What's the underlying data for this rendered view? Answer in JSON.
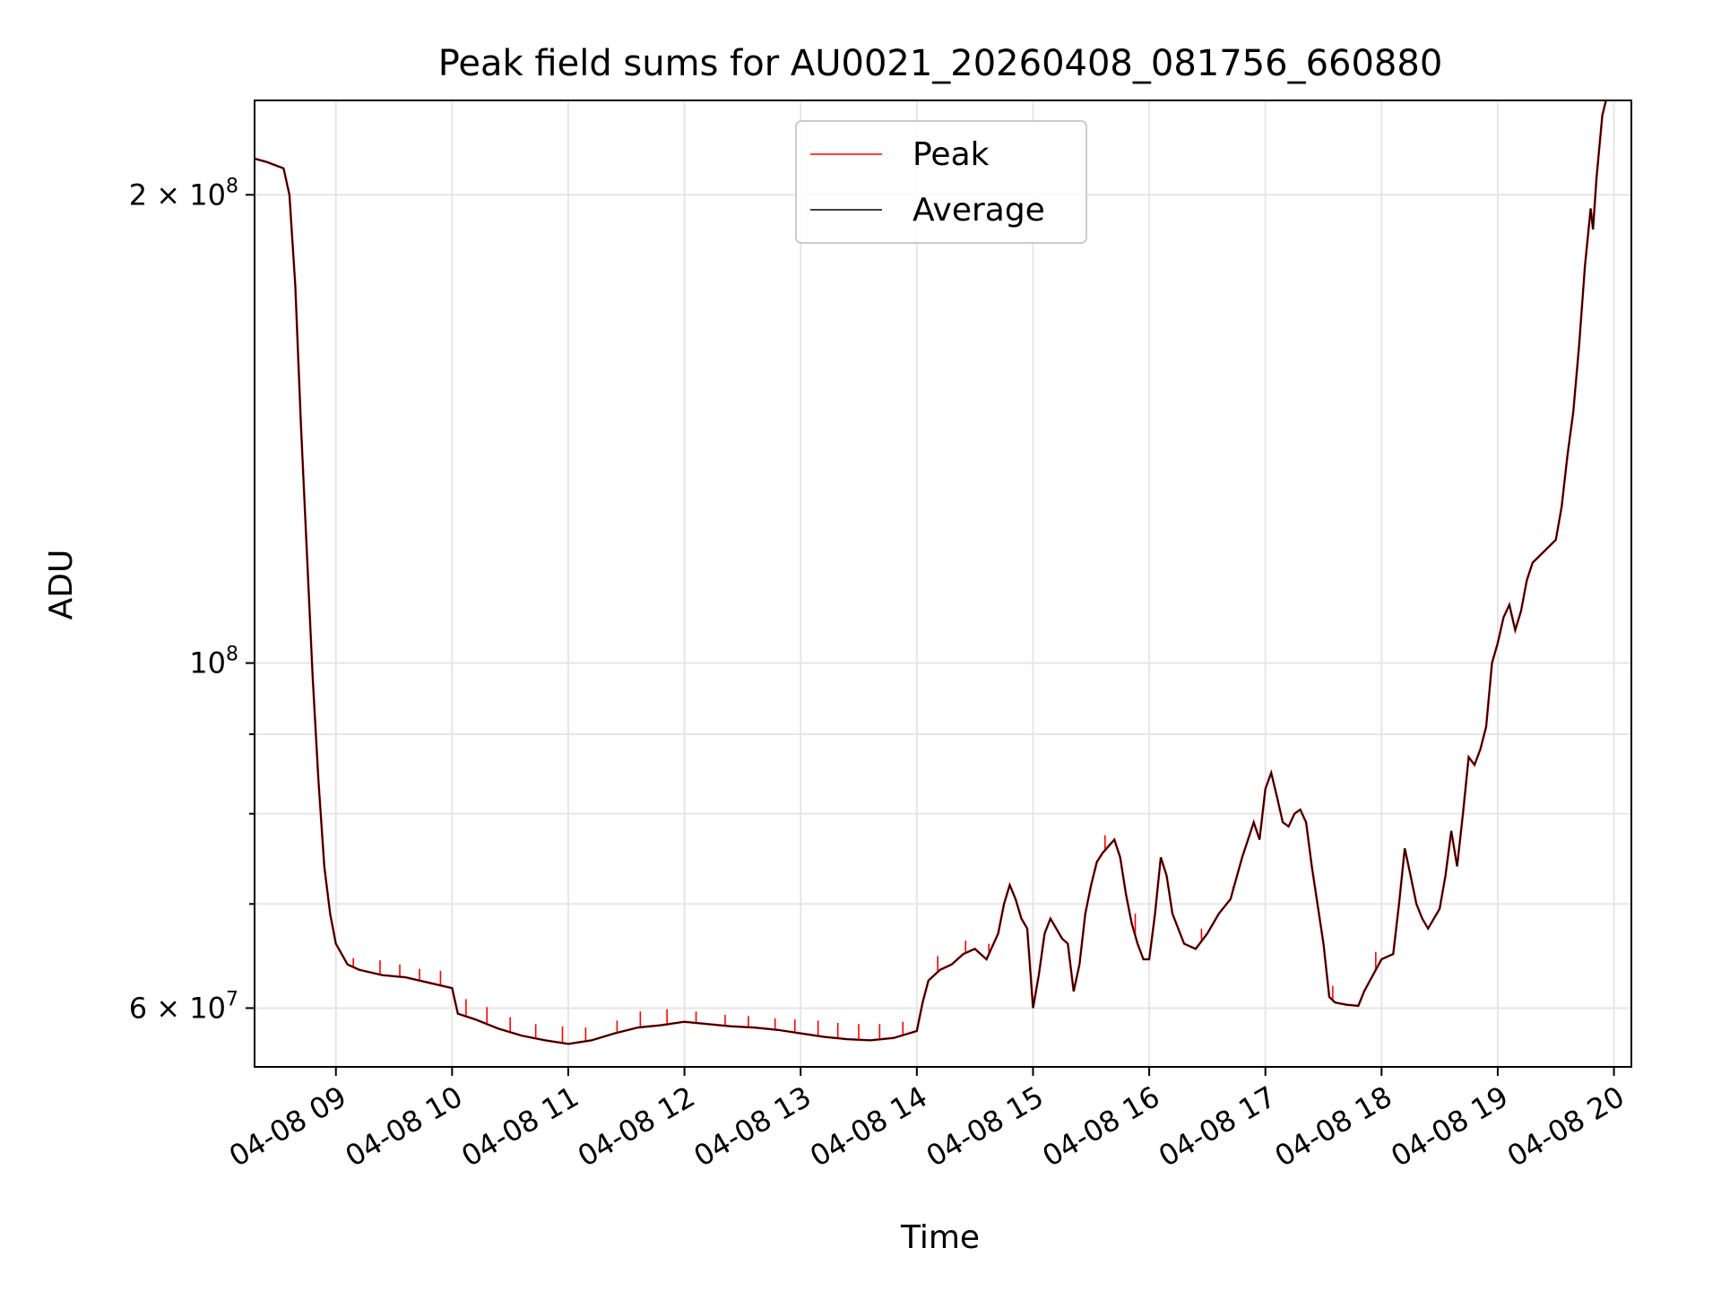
{
  "chart_data": {
    "type": "line",
    "title": "Peak field sums for AU0021_20260408_081756_660880",
    "xlabel": "Time",
    "ylabel": "ADU",
    "yscale": "log",
    "ylim": [
      55000000,
      230000000
    ],
    "xlim_hours": [
      8.3,
      20.15
    ],
    "grid": true,
    "legend": {
      "position": "upper-center",
      "entries": [
        {
          "name": "Peak",
          "color": "#ff0000"
        },
        {
          "name": "Average",
          "color": "#000000"
        }
      ]
    },
    "x_ticks": [
      {
        "hour": 9,
        "label": "04-08 09"
      },
      {
        "hour": 10,
        "label": "04-08 10"
      },
      {
        "hour": 11,
        "label": "04-08 11"
      },
      {
        "hour": 12,
        "label": "04-08 12"
      },
      {
        "hour": 13,
        "label": "04-08 13"
      },
      {
        "hour": 14,
        "label": "04-08 14"
      },
      {
        "hour": 15,
        "label": "04-08 15"
      },
      {
        "hour": 16,
        "label": "04-08 16"
      },
      {
        "hour": 17,
        "label": "04-08 17"
      },
      {
        "hour": 18,
        "label": "04-08 18"
      },
      {
        "hour": 19,
        "label": "04-08 19"
      },
      {
        "hour": 20,
        "label": "04-08 20"
      }
    ],
    "y_ticks_major": [
      {
        "value": 60000000,
        "base": "6 × 10",
        "exp": "7"
      },
      {
        "value": 100000000,
        "base": "10",
        "exp": "8"
      },
      {
        "value": 200000000,
        "base": "2 × 10",
        "exp": "8"
      }
    ],
    "y_ticks_minor": [
      70000000,
      80000000,
      90000000
    ],
    "series": [
      {
        "name": "Average",
        "color": "#000000",
        "points": [
          [
            8.3,
            211000000
          ],
          [
            8.4,
            210000000
          ],
          [
            8.55,
            208000000
          ],
          [
            8.6,
            200000000
          ],
          [
            8.65,
            175000000
          ],
          [
            8.7,
            142000000
          ],
          [
            8.75,
            118000000
          ],
          [
            8.8,
            98000000
          ],
          [
            8.85,
            84000000
          ],
          [
            8.9,
            74000000
          ],
          [
            8.95,
            69000000
          ],
          [
            9.0,
            66000000
          ],
          [
            9.1,
            64000000
          ],
          [
            9.2,
            63500000
          ],
          [
            9.4,
            63000000
          ],
          [
            9.6,
            62800000
          ],
          [
            9.8,
            62300000
          ],
          [
            10.0,
            61800000
          ],
          [
            10.05,
            59500000
          ],
          [
            10.2,
            59000000
          ],
          [
            10.4,
            58200000
          ],
          [
            10.6,
            57600000
          ],
          [
            10.8,
            57200000
          ],
          [
            11.0,
            56900000
          ],
          [
            11.2,
            57200000
          ],
          [
            11.4,
            57800000
          ],
          [
            11.6,
            58300000
          ],
          [
            11.8,
            58500000
          ],
          [
            12.0,
            58800000
          ],
          [
            12.2,
            58600000
          ],
          [
            12.4,
            58400000
          ],
          [
            12.6,
            58300000
          ],
          [
            12.8,
            58100000
          ],
          [
            13.0,
            57800000
          ],
          [
            13.2,
            57500000
          ],
          [
            13.4,
            57300000
          ],
          [
            13.6,
            57200000
          ],
          [
            13.8,
            57400000
          ],
          [
            14.0,
            58000000
          ],
          [
            14.05,
            60500000
          ],
          [
            14.1,
            62500000
          ],
          [
            14.2,
            63500000
          ],
          [
            14.3,
            64000000
          ],
          [
            14.4,
            65000000
          ],
          [
            14.5,
            65500000
          ],
          [
            14.6,
            64500000
          ],
          [
            14.7,
            67000000
          ],
          [
            14.75,
            70000000
          ],
          [
            14.8,
            72000000
          ],
          [
            14.85,
            70500000
          ],
          [
            14.9,
            68500000
          ],
          [
            14.95,
            67500000
          ],
          [
            15.0,
            60000000
          ],
          [
            15.05,
            63000000
          ],
          [
            15.1,
            67000000
          ],
          [
            15.15,
            68500000
          ],
          [
            15.2,
            67500000
          ],
          [
            15.25,
            66500000
          ],
          [
            15.3,
            66000000
          ],
          [
            15.35,
            61500000
          ],
          [
            15.4,
            64000000
          ],
          [
            15.45,
            69000000
          ],
          [
            15.5,
            72000000
          ],
          [
            15.55,
            74500000
          ],
          [
            15.6,
            75500000
          ],
          [
            15.7,
            77000000
          ],
          [
            15.75,
            75000000
          ],
          [
            15.8,
            71000000
          ],
          [
            15.85,
            68000000
          ],
          [
            15.9,
            66000000
          ],
          [
            15.95,
            64500000
          ],
          [
            16.0,
            64500000
          ],
          [
            16.05,
            69000000
          ],
          [
            16.1,
            75000000
          ],
          [
            16.15,
            73000000
          ],
          [
            16.2,
            69000000
          ],
          [
            16.3,
            66000000
          ],
          [
            16.4,
            65500000
          ],
          [
            16.5,
            67000000
          ],
          [
            16.6,
            69000000
          ],
          [
            16.7,
            70500000
          ],
          [
            16.8,
            75000000
          ],
          [
            16.9,
            79000000
          ],
          [
            16.95,
            77000000
          ],
          [
            17.0,
            83000000
          ],
          [
            17.05,
            85000000
          ],
          [
            17.1,
            82000000
          ],
          [
            17.15,
            79000000
          ],
          [
            17.2,
            78500000
          ],
          [
            17.25,
            80000000
          ],
          [
            17.3,
            80500000
          ],
          [
            17.35,
            79000000
          ],
          [
            17.4,
            74000000
          ],
          [
            17.5,
            66000000
          ],
          [
            17.55,
            61000000
          ],
          [
            17.6,
            60500000
          ],
          [
            17.7,
            60300000
          ],
          [
            17.8,
            60200000
          ],
          [
            17.85,
            61500000
          ],
          [
            17.9,
            62500000
          ],
          [
            18.0,
            64500000
          ],
          [
            18.1,
            65000000
          ],
          [
            18.15,
            70000000
          ],
          [
            18.2,
            76000000
          ],
          [
            18.25,
            73000000
          ],
          [
            18.3,
            70000000
          ],
          [
            18.35,
            68500000
          ],
          [
            18.4,
            67500000
          ],
          [
            18.5,
            69500000
          ],
          [
            18.55,
            73000000
          ],
          [
            18.6,
            78000000
          ],
          [
            18.65,
            74000000
          ],
          [
            18.7,
            80000000
          ],
          [
            18.75,
            87000000
          ],
          [
            18.8,
            86000000
          ],
          [
            18.85,
            88000000
          ],
          [
            18.9,
            91000000
          ],
          [
            18.95,
            100000000
          ],
          [
            19.0,
            103000000
          ],
          [
            19.05,
            107000000
          ],
          [
            19.1,
            109000000
          ],
          [
            19.15,
            105000000
          ],
          [
            19.2,
            108000000
          ],
          [
            19.25,
            113000000
          ],
          [
            19.3,
            116000000
          ],
          [
            19.4,
            118000000
          ],
          [
            19.5,
            120000000
          ],
          [
            19.55,
            126000000
          ],
          [
            19.6,
            136000000
          ],
          [
            19.65,
            145000000
          ],
          [
            19.7,
            160000000
          ],
          [
            19.75,
            180000000
          ],
          [
            19.8,
            196000000
          ],
          [
            19.82,
            190000000
          ],
          [
            19.85,
            205000000
          ],
          [
            19.9,
            225000000
          ],
          [
            19.95,
            233000000
          ]
        ]
      },
      {
        "name": "Peak",
        "color": "#ff0000",
        "spikes": [
          [
            9.15,
            64600000
          ],
          [
            9.38,
            64400000
          ],
          [
            9.55,
            64000000
          ],
          [
            9.72,
            63600000
          ],
          [
            9.9,
            63400000
          ],
          [
            10.12,
            60800000
          ],
          [
            10.3,
            60100000
          ],
          [
            10.5,
            59200000
          ],
          [
            10.72,
            58600000
          ],
          [
            10.95,
            58400000
          ],
          [
            11.15,
            58300000
          ],
          [
            11.42,
            58900000
          ],
          [
            11.62,
            59700000
          ],
          [
            11.85,
            59900000
          ],
          [
            12.1,
            59700000
          ],
          [
            12.35,
            59400000
          ],
          [
            12.55,
            59300000
          ],
          [
            12.78,
            59100000
          ],
          [
            12.95,
            59000000
          ],
          [
            13.15,
            58900000
          ],
          [
            13.32,
            58700000
          ],
          [
            13.5,
            58600000
          ],
          [
            13.68,
            58600000
          ],
          [
            13.88,
            58800000
          ],
          [
            14.18,
            64800000
          ],
          [
            14.42,
            66300000
          ],
          [
            14.62,
            66000000
          ],
          [
            15.62,
            77500000
          ],
          [
            15.88,
            69000000
          ],
          [
            16.45,
            67500000
          ],
          [
            16.72,
            71800000
          ],
          [
            17.58,
            62000000
          ],
          [
            17.95,
            65200000
          ]
        ]
      }
    ]
  }
}
